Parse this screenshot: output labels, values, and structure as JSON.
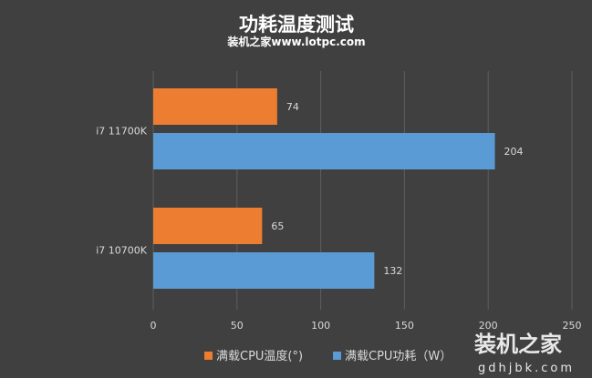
{
  "chart_data": {
    "type": "bar",
    "orientation": "horizontal",
    "title": "功耗温度测试",
    "subtitle": "装机之家www.lotpc.com",
    "categories": [
      "i7 11700K",
      "i7 10700K"
    ],
    "series": [
      {
        "name": "满载CPU温度(°)",
        "color": "#ed7d31",
        "values": [
          74,
          65
        ]
      },
      {
        "name": "满载CPU功耗（W）",
        "color": "#5b9bd5",
        "values": [
          204,
          132
        ]
      }
    ],
    "xlim": [
      0,
      250
    ],
    "xticks": [
      0,
      50,
      100,
      150,
      200,
      250
    ],
    "grid": true,
    "legend": "bottom"
  },
  "watermark": {
    "logo_text": "装机之家",
    "url_text": "gdhjbk.com"
  }
}
